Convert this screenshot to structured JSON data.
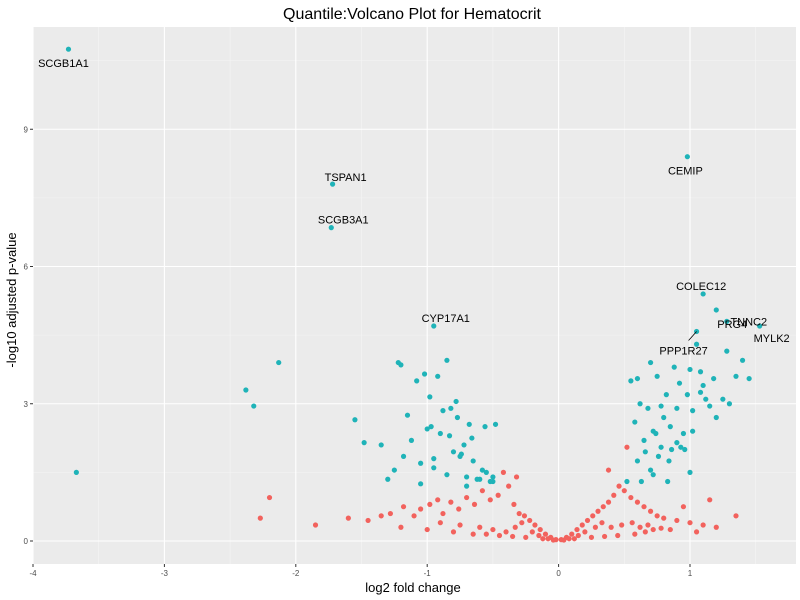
{
  "chart_data": {
    "type": "scatter",
    "title": "Quantile:Volcano Plot for Hematocrit",
    "xlabel": "log2 fold change",
    "ylabel": "-log10 adjusted p-value",
    "xlim": [
      -4,
      1.75
    ],
    "ylim": [
      -0.3,
      11.3
    ],
    "x_ticks": [
      -4,
      -3,
      -2,
      -1,
      0,
      1
    ],
    "x_tick_labels": [
      "-4",
      "-3",
      "-2",
      "-1",
      "0",
      "1"
    ],
    "y_ticks": [
      0,
      3,
      6,
      9
    ],
    "y_tick_labels": [
      "0",
      "3",
      "6",
      "9"
    ],
    "grid": true,
    "legend": "none",
    "colors": {
      "panel": "#ebebeb",
      "grid_major": "#ffffff",
      "significant": "#1fb3b8",
      "not_significant": "#f2625d"
    },
    "labeled_points": [
      {
        "gene": "SCGB1A1",
        "x": -3.73,
        "y": 10.75
      },
      {
        "gene": "TSPAN1",
        "x": -1.72,
        "y": 7.8
      },
      {
        "gene": "SCGB3A1",
        "x": -1.73,
        "y": 6.85
      },
      {
        "gene": "CYP17A1",
        "x": -0.95,
        "y": 4.7
      },
      {
        "gene": "CEMIP",
        "x": 0.98,
        "y": 8.4
      },
      {
        "gene": "COLEC12",
        "x": 1.1,
        "y": 5.4
      },
      {
        "gene": "PRG4",
        "x": 1.2,
        "y": 5.05
      },
      {
        "gene": "TNNC2",
        "x": 1.28,
        "y": 4.8
      },
      {
        "gene": "MYLK2",
        "x": 1.53,
        "y": 4.7
      },
      {
        "gene": "PPP1R27",
        "x": 1.05,
        "y": 4.58
      }
    ],
    "series": [
      {
        "group": "significant",
        "color": "#1fb3b8",
        "x": [
          -3.67,
          -2.13,
          -2.38,
          -2.32,
          -1.55,
          -1.48,
          -1.22,
          -1.2,
          -1.18,
          -1.12,
          -1.08,
          -1.05,
          -1.02,
          -0.98,
          -0.97,
          -0.95,
          -0.92,
          -0.88,
          -0.85,
          -0.83,
          -0.8,
          -0.78,
          -0.75,
          -0.72,
          -0.7,
          -0.68,
          -0.65,
          -0.6,
          -0.55,
          -0.5,
          -1.15,
          -1.0,
          -0.9,
          -0.82,
          -0.74,
          -0.66,
          -0.58,
          -0.52,
          -1.25,
          -1.3,
          -1.35,
          -1.05,
          -0.95,
          -0.85,
          -0.77,
          -0.7,
          -0.62,
          -0.56,
          -0.5,
          -0.48,
          0.52,
          0.55,
          0.58,
          0.6,
          0.62,
          0.65,
          0.68,
          0.7,
          0.72,
          0.75,
          0.78,
          0.8,
          0.82,
          0.85,
          0.88,
          0.9,
          0.92,
          0.95,
          0.98,
          1.0,
          1.02,
          1.05,
          1.08,
          1.1,
          1.12,
          1.15,
          1.18,
          1.2,
          1.25,
          1.3,
          1.35,
          1.4,
          1.45,
          0.6,
          0.66,
          0.72,
          0.78,
          0.84,
          0.9,
          0.96,
          1.02,
          1.08,
          0.63,
          0.7,
          0.76,
          0.83,
          0.93,
          1.0,
          0.74,
          0.86,
          1.28
        ],
        "y": [
          1.5,
          3.9,
          3.3,
          2.95,
          2.65,
          2.15,
          3.9,
          3.85,
          1.85,
          2.2,
          3.5,
          1.7,
          3.65,
          3.15,
          2.5,
          1.8,
          3.6,
          2.85,
          3.95,
          2.3,
          1.95,
          3.05,
          1.85,
          2.1,
          1.4,
          2.55,
          1.75,
          1.35,
          1.5,
          1.4,
          2.75,
          2.45,
          2.35,
          2.9,
          1.9,
          2.25,
          1.55,
          1.3,
          1.55,
          1.35,
          2.1,
          1.25,
          1.6,
          1.45,
          2.7,
          1.2,
          1.35,
          2.5,
          1.3,
          2.55,
          1.3,
          3.5,
          2.6,
          3.55,
          3.0,
          2.2,
          2.9,
          3.9,
          2.4,
          3.6,
          2.95,
          2.7,
          3.2,
          2.5,
          3.8,
          2.9,
          3.45,
          2.35,
          3.2,
          3.75,
          2.85,
          4.3,
          3.25,
          3.4,
          3.1,
          2.95,
          3.55,
          2.7,
          3.1,
          3.0,
          3.6,
          3.95,
          3.55,
          1.75,
          1.95,
          1.45,
          2.05,
          1.75,
          2.15,
          2.0,
          2.4,
          3.7,
          1.3,
          1.55,
          1.85,
          1.3,
          2.05,
          1.5,
          2.35,
          2.0,
          4.15
        ],
        "x_labeled_note": ""
      },
      {
        "group": "not_significant",
        "color": "#f2625d",
        "x": [
          -2.2,
          -2.27,
          -1.85,
          -1.6,
          -1.45,
          -1.35,
          -1.28,
          -1.18,
          -1.1,
          -1.05,
          -0.98,
          -0.92,
          -0.88,
          -0.82,
          -0.76,
          -0.7,
          -0.64,
          -0.58,
          -0.52,
          -0.46,
          -0.42,
          -0.38,
          -0.34,
          -0.3,
          -0.26,
          -0.22,
          -0.18,
          -0.14,
          -0.1,
          -0.06,
          -0.02,
          0.02,
          0.06,
          0.1,
          0.14,
          0.18,
          0.22,
          0.26,
          0.3,
          0.34,
          0.38,
          0.42,
          0.46,
          0.5,
          0.55,
          0.6,
          0.65,
          0.7,
          0.75,
          0.8,
          0.9,
          1.0,
          1.1,
          1.2,
          1.35,
          0.95,
          1.15,
          -0.9,
          -0.75,
          -0.6,
          -0.5,
          -0.4,
          -0.33,
          -0.28,
          -0.2,
          -0.15,
          -0.08,
          -0.04,
          0.04,
          0.08,
          0.15,
          0.2,
          0.28,
          0.33,
          0.4,
          0.48,
          0.56,
          0.62,
          0.68,
          0.72,
          0.85,
          -1.2,
          -1.0,
          -0.8,
          -0.65,
          -0.55,
          -0.45,
          -0.35,
          -0.25,
          -0.12,
          0.12,
          0.25,
          0.35,
          0.45,
          0.58,
          0.66,
          0.78,
          1.05,
          -0.32,
          0.38,
          0.52
        ],
        "y": [
          0.95,
          0.5,
          0.35,
          0.5,
          0.45,
          0.55,
          0.6,
          0.75,
          0.55,
          0.7,
          0.8,
          0.9,
          0.6,
          0.85,
          0.7,
          0.95,
          0.8,
          1.1,
          0.9,
          1.0,
          1.5,
          1.2,
          0.8,
          0.6,
          0.55,
          0.45,
          0.35,
          0.25,
          0.15,
          0.08,
          0.03,
          0.03,
          0.08,
          0.15,
          0.25,
          0.35,
          0.45,
          0.55,
          0.65,
          0.75,
          0.85,
          1.0,
          1.2,
          1.1,
          0.95,
          0.85,
          0.75,
          0.65,
          0.55,
          0.5,
          0.45,
          0.4,
          0.35,
          0.3,
          0.55,
          0.75,
          0.9,
          0.4,
          0.35,
          0.3,
          0.25,
          0.2,
          0.3,
          0.4,
          0.2,
          0.12,
          0.05,
          0.02,
          0.02,
          0.05,
          0.12,
          0.2,
          0.3,
          0.4,
          0.3,
          0.35,
          0.4,
          0.3,
          0.35,
          0.25,
          0.25,
          0.3,
          0.25,
          0.2,
          0.15,
          0.15,
          0.12,
          0.1,
          0.08,
          0.05,
          0.05,
          0.08,
          0.1,
          0.12,
          0.15,
          0.2,
          0.28,
          0.2,
          1.4,
          1.55,
          2.05
        ]
      }
    ]
  }
}
